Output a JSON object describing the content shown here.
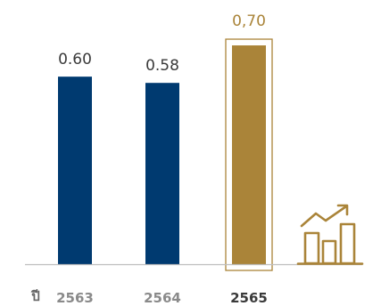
{
  "chart_data": {
    "type": "bar",
    "categories": [
      "2563",
      "2564",
      "2565"
    ],
    "values": [
      0.6,
      0.58,
      0.7
    ],
    "value_labels": [
      "0.60",
      "0.58",
      "0,70"
    ],
    "xlabel": "ปี",
    "ylabel": "",
    "title": "",
    "ylim": [
      0,
      0.72
    ],
    "grid": false,
    "highlight_index": 2
  },
  "colors": {
    "bar": "#003a70",
    "highlight": "#aa8439",
    "baseline": "#bfbfbf",
    "label": "#3a3a3a",
    "tick": "#8a8a8a",
    "tick_highlight": "#3a3a3a",
    "axis_label": "#666666"
  },
  "icons": {
    "growth": "bar-chart-growth-icon"
  }
}
